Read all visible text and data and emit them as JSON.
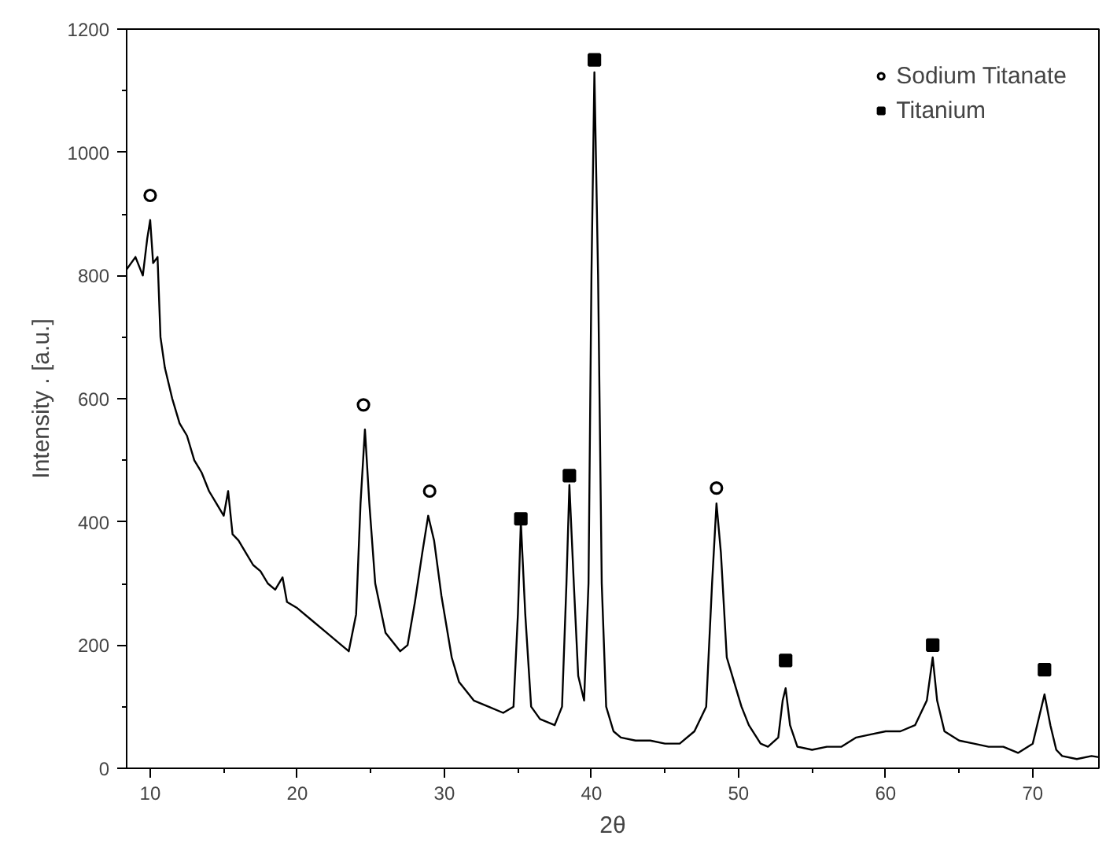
{
  "chart_data": {
    "type": "line",
    "xlabel": "2θ",
    "ylabel": "Intensity . [a.u.]",
    "xlim": [
      8.4,
      74.5
    ],
    "ylim": [
      0,
      1200
    ],
    "xticks": [
      10,
      20,
      30,
      40,
      50,
      60,
      70
    ],
    "yticks": [
      0,
      200,
      400,
      600,
      800,
      1000,
      1200
    ],
    "grid": false,
    "legend": "top right",
    "series": [
      {
        "color": "#000000",
        "x": [
          8.4,
          9,
          9.5,
          9.8,
          10.0,
          10.2,
          10.5,
          10.7,
          11,
          11.5,
          12,
          12.5,
          13,
          13.5,
          14,
          14.5,
          15,
          15.3,
          15.6,
          16,
          16.5,
          17,
          17.5,
          18,
          18.5,
          19,
          19.3,
          20,
          21,
          22,
          23,
          23.5,
          24,
          24.3,
          24.6,
          24.9,
          25.3,
          26,
          27,
          27.5,
          28,
          28.5,
          28.9,
          29.3,
          29.8,
          30.5,
          31,
          32,
          33,
          34,
          34.7,
          35.0,
          35.2,
          35.5,
          35.9,
          36.5,
          37.5,
          38,
          38.3,
          38.5,
          38.8,
          39.1,
          39.5,
          39.8,
          40.0,
          40.2,
          40.45,
          40.7,
          41,
          41.5,
          42,
          43,
          44,
          45,
          46,
          47,
          47.8,
          48.2,
          48.5,
          48.8,
          49.2,
          49.7,
          50.2,
          50.7,
          51.5,
          52,
          52.7,
          53.0,
          53.2,
          53.5,
          54,
          55,
          56,
          57,
          58,
          59,
          60,
          61,
          62,
          62.8,
          63.2,
          63.5,
          64,
          65,
          66,
          67,
          68,
          69,
          70,
          70.5,
          70.8,
          71.2,
          71.6,
          72,
          73,
          74,
          74.5
        ],
        "values": [
          810,
          830,
          800,
          860,
          890,
          820,
          830,
          700,
          650,
          600,
          560,
          540,
          500,
          480,
          450,
          430,
          410,
          450,
          380,
          370,
          350,
          330,
          320,
          300,
          290,
          310,
          270,
          260,
          240,
          220,
          200,
          190,
          250,
          430,
          550,
          430,
          300,
          220,
          190,
          200,
          270,
          350,
          410,
          370,
          280,
          180,
          140,
          110,
          100,
          90,
          100,
          250,
          400,
          250,
          100,
          80,
          70,
          100,
          300,
          460,
          300,
          150,
          110,
          300,
          800,
          1130,
          800,
          300,
          100,
          60,
          50,
          45,
          45,
          40,
          40,
          60,
          100,
          300,
          430,
          350,
          180,
          140,
          100,
          70,
          40,
          35,
          50,
          110,
          130,
          70,
          35,
          30,
          35,
          35,
          50,
          55,
          60,
          60,
          70,
          110,
          180,
          110,
          60,
          45,
          40,
          35,
          35,
          25,
          40,
          90,
          120,
          70,
          30,
          20,
          15,
          20,
          18
        ]
      },
      {
        "type": "scatter",
        "name": "Sodium Titanate",
        "color": "#000000",
        "marker": "circle",
        "x": [
          10.0,
          24.5,
          29.0,
          48.5
        ],
        "values": [
          930,
          590,
          450,
          455
        ]
      },
      {
        "type": "scatter",
        "name": "Titanium",
        "color": "#000000",
        "marker": "square",
        "x": [
          35.2,
          38.5,
          40.2,
          53.2,
          63.2,
          70.8
        ],
        "values": [
          405,
          475,
          1150,
          175,
          200,
          160
        ]
      }
    ]
  }
}
